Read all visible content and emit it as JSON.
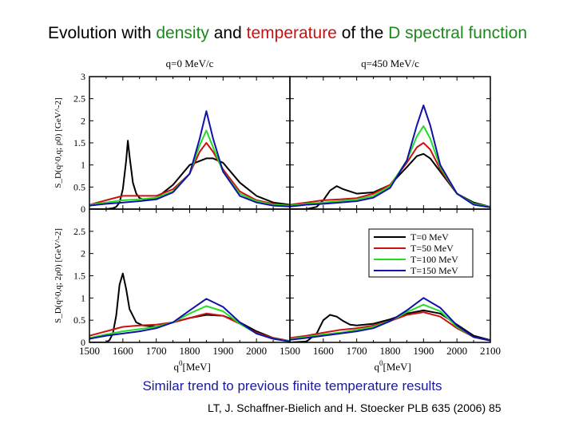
{
  "title": {
    "part1": "Evolution with ",
    "word_density": "density",
    "part2": " and ",
    "word_temperature": "temperature",
    "part3": " of the ",
    "word_D": "D spectral function",
    "color_density": "#1a8a1a",
    "color_temperature": "#cc1111",
    "color_D": "#1a8a1a"
  },
  "caption": "Similar trend to previous finite temperature results",
  "citation": "LT, J. Schaffner-Bielich and H. Stoecker  PLB 635 (2006) 85",
  "chart_data": {
    "type": "line",
    "xlabel_base": "q",
    "xlabel_sup": "0",
    "xlabel_unit": "[MeV]",
    "ylim": [
      0,
      3
    ],
    "xlim": [
      1500,
      2100
    ],
    "x_ticks_left": [
      "1500",
      "1600",
      "1700",
      "1800",
      "1900",
      "2000"
    ],
    "x_ticks_right": [
      "1500",
      "1600",
      "1700",
      "1800",
      "1900",
      "2000",
      "2100"
    ],
    "y_ticks_top": [
      "0",
      "0.5",
      "1",
      "1.5",
      "2",
      "2.5",
      "3"
    ],
    "y_ticks_bottom": [
      "0",
      "0.5",
      "1",
      "1.5",
      "2",
      "2.5"
    ],
    "column_titles": [
      "q=0 MeV/c",
      "q=450 MeV/c"
    ],
    "row_ylabels": [
      "S_D(q^0,q; ρ0) [GeV^-2]",
      "S_D(q^0,q; 2ρ0) [GeV^-2]"
    ],
    "legend": [
      {
        "label": "T=0 MeV",
        "color": "#000000"
      },
      {
        "label": "T=50 MeV",
        "color": "#cc1111"
      },
      {
        "label": "T=100 MeV",
        "color": "#22dd22"
      },
      {
        "label": "T=150 MeV",
        "color": "#1111aa"
      }
    ],
    "panels": [
      {
        "name": "density-rho0-q0",
        "series": [
          {
            "name": "T=0 MeV",
            "color": "#000000",
            "x": [
              1500,
              1550,
              1570,
              1580,
              1590,
              1600,
              1610,
              1615,
              1620,
              1630,
              1640,
              1650,
              1670,
              1700,
              1750,
              1800,
              1850,
              1870,
              1900,
              1950,
              2000,
              2050,
              2100
            ],
            "y": [
              0,
              0,
              0.02,
              0.05,
              0.15,
              0.45,
              1.1,
              1.55,
              1.2,
              0.6,
              0.35,
              0.25,
              0.2,
              0.25,
              0.55,
              1.0,
              1.15,
              1.15,
              1.05,
              0.6,
              0.3,
              0.15,
              0.1
            ]
          },
          {
            "name": "T=50 MeV",
            "color": "#cc1111",
            "x": [
              1500,
              1550,
              1600,
              1650,
              1700,
              1750,
              1800,
              1830,
              1850,
              1870,
              1900,
              1950,
              2000,
              2050,
              2100
            ],
            "y": [
              0.1,
              0.2,
              0.3,
              0.3,
              0.3,
              0.45,
              0.8,
              1.3,
              1.5,
              1.3,
              0.9,
              0.4,
              0.2,
              0.12,
              0.08
            ]
          },
          {
            "name": "T=100 MeV",
            "color": "#22dd22",
            "x": [
              1500,
              1550,
              1600,
              1650,
              1700,
              1750,
              1800,
              1830,
              1850,
              1870,
              1900,
              1950,
              2000,
              2050,
              2100
            ],
            "y": [
              0.1,
              0.15,
              0.2,
              0.22,
              0.26,
              0.4,
              0.8,
              1.45,
              1.78,
              1.4,
              0.85,
              0.35,
              0.18,
              0.1,
              0.08
            ]
          },
          {
            "name": "T=150 MeV",
            "color": "#1111aa",
            "x": [
              1500,
              1550,
              1600,
              1650,
              1700,
              1750,
              1800,
              1830,
              1850,
              1870,
              1900,
              1950,
              2000,
              2050,
              2100
            ],
            "y": [
              0.08,
              0.12,
              0.15,
              0.18,
              0.22,
              0.38,
              0.8,
              1.6,
              2.22,
              1.6,
              0.85,
              0.3,
              0.15,
              0.08,
              0.06
            ]
          }
        ]
      },
      {
        "name": "density-rho0-q450",
        "series": [
          {
            "name": "T=0 MeV",
            "color": "#000000",
            "x": [
              1500,
              1550,
              1580,
              1600,
              1620,
              1640,
              1660,
              1700,
              1750,
              1800,
              1850,
              1880,
              1900,
              1920,
              1950,
              2000,
              2050,
              2100
            ],
            "y": [
              0,
              0,
              0.05,
              0.2,
              0.42,
              0.52,
              0.45,
              0.35,
              0.38,
              0.55,
              0.95,
              1.2,
              1.25,
              1.15,
              0.85,
              0.35,
              0.15,
              0.05
            ]
          },
          {
            "name": "T=50 MeV",
            "color": "#cc1111",
            "x": [
              1500,
              1550,
              1600,
              1650,
              1700,
              1750,
              1800,
              1850,
              1880,
              1900,
              1920,
              1950,
              2000,
              2050,
              2100
            ],
            "y": [
              0.1,
              0.15,
              0.2,
              0.22,
              0.25,
              0.35,
              0.55,
              1.05,
              1.4,
              1.5,
              1.35,
              0.9,
              0.35,
              0.12,
              0.05
            ]
          },
          {
            "name": "T=100 MeV",
            "color": "#22dd22",
            "x": [
              1500,
              1550,
              1600,
              1650,
              1700,
              1750,
              1800,
              1850,
              1880,
              1900,
              1920,
              1950,
              2000,
              2050,
              2100
            ],
            "y": [
              0.08,
              0.12,
              0.15,
              0.18,
              0.22,
              0.3,
              0.52,
              1.1,
              1.65,
              1.88,
              1.6,
              0.95,
              0.35,
              0.12,
              0.05
            ]
          },
          {
            "name": "T=150 MeV",
            "color": "#1111aa",
            "x": [
              1500,
              1550,
              1600,
              1650,
              1700,
              1750,
              1800,
              1850,
              1880,
              1900,
              1920,
              1950,
              2000,
              2050,
              2100
            ],
            "y": [
              0.06,
              0.1,
              0.12,
              0.15,
              0.18,
              0.26,
              0.48,
              1.1,
              1.9,
              2.35,
              1.9,
              1.0,
              0.35,
              0.1,
              0.04
            ]
          }
        ]
      },
      {
        "name": "density-2rho0-q0",
        "series": [
          {
            "name": "T=0 MeV",
            "color": "#000000",
            "x": [
              1500,
              1550,
              1560,
              1570,
              1580,
              1590,
              1600,
              1610,
              1620,
              1640,
              1660,
              1700,
              1750,
              1800,
              1850,
              1900,
              1950,
              2000,
              2050,
              2100
            ],
            "y": [
              0,
              0,
              0.05,
              0.2,
              0.6,
              1.3,
              1.55,
              1.2,
              0.75,
              0.45,
              0.38,
              0.35,
              0.45,
              0.55,
              0.62,
              0.6,
              0.45,
              0.25,
              0.1,
              0.03
            ]
          },
          {
            "name": "T=50 MeV",
            "color": "#cc1111",
            "x": [
              1500,
              1550,
              1600,
              1650,
              1700,
              1750,
              1800,
              1850,
              1900,
              1950,
              2000,
              2050,
              2100
            ],
            "y": [
              0.15,
              0.25,
              0.35,
              0.38,
              0.4,
              0.45,
              0.55,
              0.65,
              0.6,
              0.42,
              0.22,
              0.1,
              0.03
            ]
          },
          {
            "name": "T=100 MeV",
            "color": "#22dd22",
            "x": [
              1500,
              1550,
              1600,
              1650,
              1700,
              1750,
              1800,
              1850,
              1900,
              1950,
              2000,
              2050,
              2100
            ],
            "y": [
              0.1,
              0.18,
              0.25,
              0.3,
              0.35,
              0.45,
              0.65,
              0.82,
              0.7,
              0.42,
              0.2,
              0.08,
              0.03
            ]
          },
          {
            "name": "T=150 MeV",
            "color": "#1111aa",
            "x": [
              1500,
              1550,
              1600,
              1650,
              1700,
              1750,
              1800,
              1850,
              1900,
              1950,
              2000,
              2050,
              2100
            ],
            "y": [
              0.08,
              0.15,
              0.2,
              0.25,
              0.32,
              0.45,
              0.72,
              0.98,
              0.8,
              0.45,
              0.2,
              0.08,
              0.02
            ]
          }
        ]
      },
      {
        "name": "density-2rho0-q450",
        "series": [
          {
            "name": "T=0 MeV",
            "color": "#000000",
            "x": [
              1500,
              1550,
              1580,
              1600,
              1620,
              1640,
              1660,
              1680,
              1700,
              1750,
              1800,
              1850,
              1900,
              1950,
              2000,
              2050,
              2100
            ],
            "y": [
              0,
              0.02,
              0.2,
              0.5,
              0.62,
              0.58,
              0.48,
              0.4,
              0.38,
              0.42,
              0.52,
              0.65,
              0.72,
              0.65,
              0.4,
              0.15,
              0.05
            ]
          },
          {
            "name": "T=50 MeV",
            "color": "#cc1111",
            "x": [
              1500,
              1550,
              1600,
              1650,
              1700,
              1750,
              1800,
              1850,
              1900,
              1950,
              2000,
              2050,
              2100
            ],
            "y": [
              0.1,
              0.15,
              0.22,
              0.28,
              0.32,
              0.38,
              0.48,
              0.62,
              0.68,
              0.58,
              0.32,
              0.12,
              0.04
            ]
          },
          {
            "name": "T=100 MeV",
            "color": "#22dd22",
            "x": [
              1500,
              1550,
              1600,
              1650,
              1700,
              1750,
              1800,
              1850,
              1900,
              1950,
              2000,
              2050,
              2100
            ],
            "y": [
              0.08,
              0.12,
              0.18,
              0.22,
              0.28,
              0.35,
              0.48,
              0.68,
              0.85,
              0.7,
              0.35,
              0.12,
              0.04
            ]
          },
          {
            "name": "T=150 MeV",
            "color": "#1111aa",
            "x": [
              1500,
              1550,
              1600,
              1650,
              1700,
              1750,
              1800,
              1850,
              1900,
              1950,
              2000,
              2050,
              2100
            ],
            "y": [
              0.06,
              0.1,
              0.15,
              0.2,
              0.25,
              0.32,
              0.48,
              0.72,
              1.0,
              0.78,
              0.38,
              0.12,
              0.04
            ]
          }
        ]
      }
    ]
  }
}
